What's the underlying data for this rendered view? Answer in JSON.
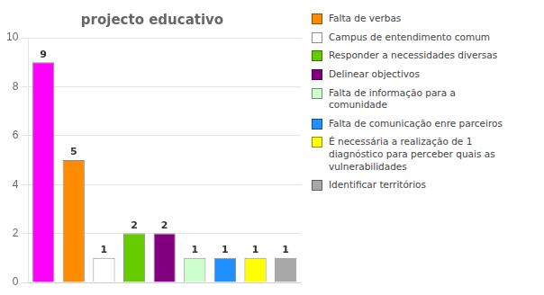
{
  "chart_data": {
    "type": "bar",
    "title": "projecto educativo",
    "categories": [
      null,
      "Falta de verbas",
      "Campus de entendimento comum",
      "Responder a necessidades diversas",
      "Delinear objectivos",
      "Falta de informação para a\n comunidade",
      "Falta de comunicação enre parceiros",
      "É necessária a realização de 1\n diagnóstico para perceber quais as\n vulnerabilidades",
      "Identificar territórios"
    ],
    "values": [
      9,
      5,
      1,
      2,
      2,
      1,
      1,
      1,
      1
    ],
    "colors": [
      "#FF00FF",
      "#FF8C00",
      "#FFFFFF",
      "#66CC00",
      "#800080",
      "#CCFFCC",
      "#1E90FF",
      "#FFFF00",
      "#A8A8A8"
    ],
    "ylim": [
      0,
      10
    ],
    "yticks": [
      0,
      2,
      4,
      6,
      8,
      10
    ],
    "grid": true,
    "data_labels": true,
    "tick_labels": "y",
    "legend": "right"
  }
}
